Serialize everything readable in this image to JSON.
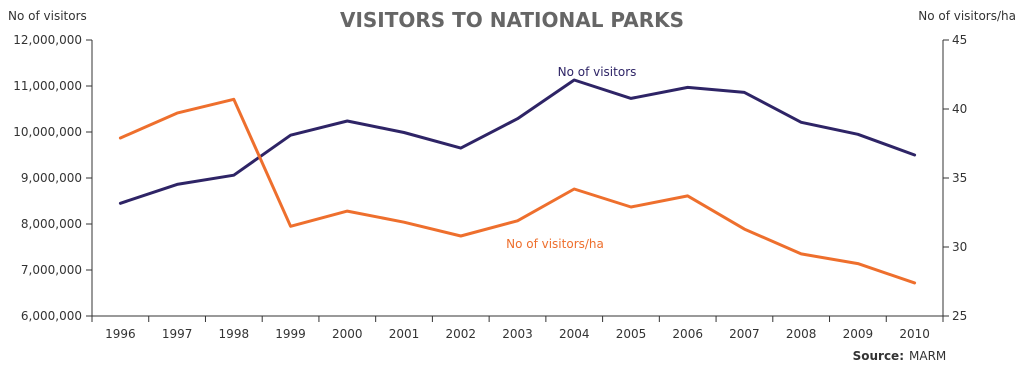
{
  "chart_data": {
    "type": "line",
    "title": "VISITORS TO NATIONAL PARKS",
    "y_left_label": "No of visitors",
    "y_right_label": "No of visitors/ha",
    "x": [
      "1996",
      "1997",
      "1998",
      "1999",
      "2000",
      "2001",
      "2002",
      "2003",
      "2004",
      "2005",
      "2006",
      "2007",
      "2008",
      "2009",
      "2010"
    ],
    "y_left_lim": [
      6000000,
      12000000
    ],
    "y_left_ticks": [
      "6,000,000",
      "7,000,000",
      "8,000,000",
      "9,000,000",
      "10,000,000",
      "11,000,000",
      "12,000,000"
    ],
    "y_right_lim": [
      25,
      45
    ],
    "y_right_ticks": [
      "25",
      "30",
      "35",
      "40",
      "45"
    ],
    "grid": false,
    "series": [
      {
        "name": "No of visitors",
        "axis": "left",
        "color": "#2e2466",
        "values": [
          8450000,
          8860000,
          9060000,
          9930000,
          10240000,
          9990000,
          9650000,
          10290000,
          11130000,
          10730000,
          10970000,
          10860000,
          10210000,
          9950000,
          9500000
        ]
      },
      {
        "name": "No of visitors/ha",
        "axis": "right",
        "color": "#ee6f2d",
        "values": [
          37.9,
          39.7,
          40.7,
          31.5,
          32.6,
          31.8,
          30.8,
          31.9,
          34.2,
          32.9,
          33.7,
          31.3,
          29.5,
          28.8,
          27.4
        ]
      }
    ],
    "source_label": "Source:",
    "source_value": "MARM"
  }
}
